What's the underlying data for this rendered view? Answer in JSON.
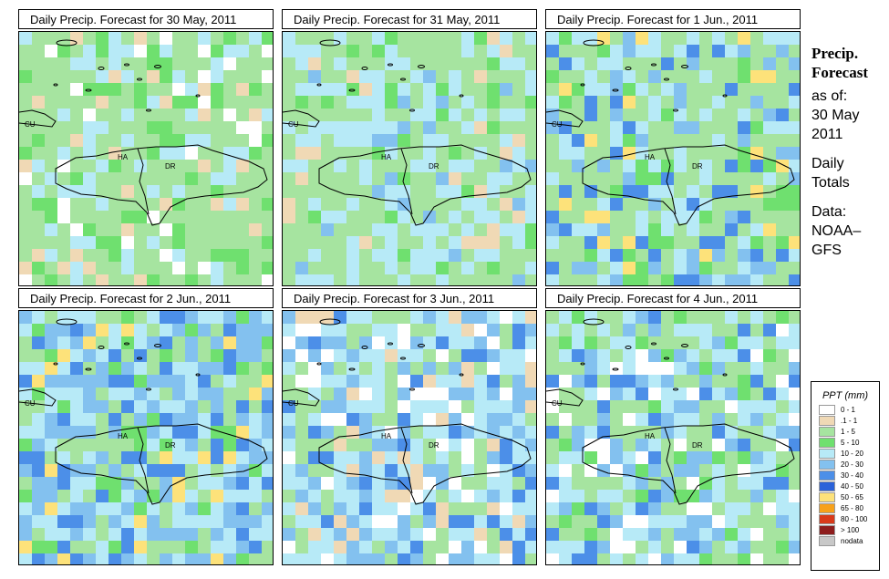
{
  "panels": [
    {
      "title": "Daily Precip. Forecast for  30 May, 2011"
    },
    {
      "title": "Daily Precip. Forecast for  31 May, 2011"
    },
    {
      "title": "Daily Precip. Forecast for  1 Jun., 2011"
    },
    {
      "title": "Daily Precip. Forecast for  2 Jun., 2011"
    },
    {
      "title": "Daily Precip. Forecast for  3 Jun., 2011"
    },
    {
      "title": "Daily Precip. Forecast for  4 Jun., 2011"
    }
  ],
  "map_labels": {
    "cu": "CU",
    "ha": "HA",
    "dr": "DR"
  },
  "side": {
    "heading_1": "Precip.",
    "heading_2": "Forecast",
    "as_of": "as of:",
    "date_1": "30 May",
    "date_2": "2011",
    "totals_1": "Daily",
    "totals_2": "Totals",
    "data_1": "Data:",
    "data_2": "NOAA–",
    "data_3": "GFS"
  },
  "legend": {
    "title": "PPT (mm)",
    "items": [
      {
        "label": "0 - 1",
        "color": "#ffffff"
      },
      {
        "label": ".1 - 1",
        "color": "#f0d9b5"
      },
      {
        "label": "1 - 5",
        "color": "#a6e4a0"
      },
      {
        "label": "5 - 10",
        "color": "#6fe06f"
      },
      {
        "label": "10 - 20",
        "color": "#b7eaf7"
      },
      {
        "label": "20 - 30",
        "color": "#83c1ef"
      },
      {
        "label": "30 - 40",
        "color": "#4c8fe8"
      },
      {
        "label": "40 - 50",
        "color": "#2b62d9"
      },
      {
        "label": "50 - 65",
        "color": "#fde27a"
      },
      {
        "label": "65 - 80",
        "color": "#f7a11a"
      },
      {
        "label": "80 - 100",
        "color": "#d93a1a"
      },
      {
        "label": "> 100",
        "color": "#8e1d1d"
      },
      {
        "label": "nodata",
        "color": "#c8c8c8"
      }
    ]
  }
}
